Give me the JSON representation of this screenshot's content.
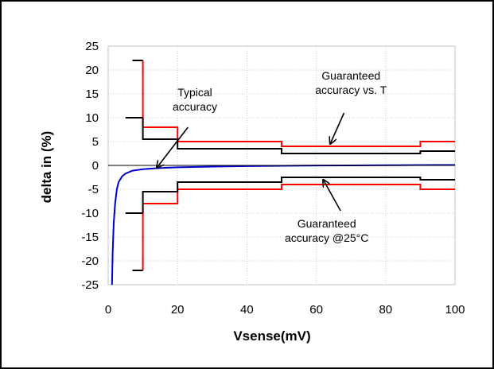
{
  "chart_data": {
    "type": "line",
    "title": "",
    "xlabel": "Vsense(mV)",
    "ylabel": "delta in (%)",
    "xlim": [
      0,
      100
    ],
    "ylim": [
      -25,
      25
    ],
    "xticks": [
      0,
      20,
      40,
      60,
      80,
      100
    ],
    "yticks": [
      -25,
      -20,
      -15,
      -10,
      -5,
      0,
      5,
      10,
      15,
      20,
      25
    ],
    "grid": true,
    "legend": "none",
    "series": [
      {
        "color": "#ff0000",
        "style": "step",
        "points": [
          [
            10,
            22
          ],
          [
            10,
            8
          ],
          [
            20,
            8
          ],
          [
            20,
            5
          ],
          [
            50,
            5
          ],
          [
            50,
            4
          ],
          [
            90,
            4
          ],
          [
            90,
            5
          ],
          [
            100,
            5
          ]
        ]
      },
      {
        "color": "#ff0000",
        "style": "step",
        "points": [
          [
            10,
            -22
          ],
          [
            10,
            -8
          ],
          [
            20,
            -8
          ],
          [
            20,
            -5
          ],
          [
            50,
            -5
          ],
          [
            50,
            -4
          ],
          [
            90,
            -4
          ],
          [
            90,
            -5
          ],
          [
            100,
            -5
          ]
        ]
      },
      {
        "color": "#000000",
        "style": "step",
        "points": [
          [
            10,
            10
          ],
          [
            10,
            5.5
          ],
          [
            20,
            5.5
          ],
          [
            20,
            3.5
          ],
          [
            50,
            3.5
          ],
          [
            50,
            2.5
          ],
          [
            90,
            2.5
          ],
          [
            90,
            3
          ],
          [
            100,
            3
          ]
        ]
      },
      {
        "color": "#000000",
        "style": "step",
        "points": [
          [
            10,
            -10
          ],
          [
            10,
            -5.5
          ],
          [
            20,
            -5.5
          ],
          [
            20,
            -3.5
          ],
          [
            50,
            -3.5
          ],
          [
            50,
            -2.5
          ],
          [
            90,
            -2.5
          ],
          [
            90,
            -3
          ],
          [
            100,
            -3
          ]
        ]
      },
      {
        "color": "#000000",
        "style": "step",
        "points": [
          [
            7,
            22
          ],
          [
            10,
            22
          ]
        ]
      },
      {
        "color": "#000000",
        "style": "step",
        "points": [
          [
            7,
            -22
          ],
          [
            10,
            -22
          ]
        ]
      },
      {
        "color": "#000000",
        "style": "step",
        "points": [
          [
            5,
            10
          ],
          [
            10,
            10
          ]
        ]
      },
      {
        "color": "#000000",
        "style": "step",
        "points": [
          [
            5,
            -10
          ],
          [
            10,
            -10
          ]
        ]
      },
      {
        "color": "#0000cc",
        "style": "curve",
        "points": [
          [
            1.1,
            -25
          ],
          [
            1.3,
            -18
          ],
          [
            1.6,
            -12
          ],
          [
            2,
            -8
          ],
          [
            2.5,
            -5
          ],
          [
            3,
            -3.5
          ],
          [
            4,
            -2.3
          ],
          [
            5,
            -1.7
          ],
          [
            7,
            -1.1
          ],
          [
            10,
            -0.8
          ],
          [
            15,
            -0.55
          ],
          [
            20,
            -0.4
          ],
          [
            30,
            -0.25
          ],
          [
            40,
            -0.15
          ],
          [
            50,
            -0.08
          ],
          [
            60,
            -0.03
          ],
          [
            70,
            0
          ],
          [
            80,
            0.05
          ],
          [
            90,
            0.08
          ],
          [
            100,
            0.1
          ]
        ]
      }
    ],
    "annotations": [
      {
        "lines": [
          "Typical",
          "accuracy"
        ],
        "text_at": [
          25,
          14.5
        ],
        "arrow_from": [
          23,
          8
        ],
        "arrow_to": [
          14,
          -0.5
        ]
      },
      {
        "lines": [
          "Guaranteed",
          "accuracy vs. T"
        ],
        "text_at": [
          70,
          18
        ],
        "arrow_from": [
          68,
          11
        ],
        "arrow_to": [
          64,
          4.5
        ]
      },
      {
        "lines": [
          "Guaranteed",
          "accuracy @25°C"
        ],
        "text_at": [
          63,
          -13
        ],
        "arrow_from": [
          67,
          -9.5
        ],
        "arrow_to": [
          62,
          -3
        ]
      }
    ]
  }
}
